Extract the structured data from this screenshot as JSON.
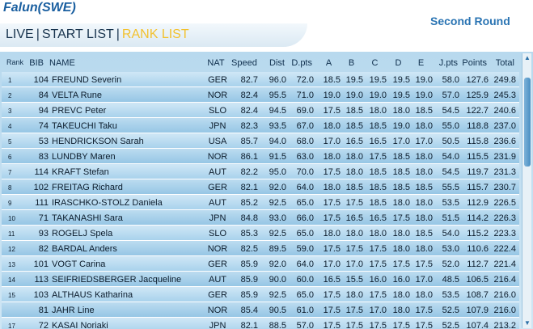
{
  "header": {
    "venue": "Falun(SWE)",
    "round": "Second Round",
    "tabs": [
      {
        "label": "LIVE"
      },
      {
        "label": "START LIST"
      },
      {
        "label": "RANK LIST",
        "active": true
      }
    ],
    "separator": "|"
  },
  "table": {
    "columns": {
      "rank": "Rank",
      "bib": "BIB",
      "name": "NAME",
      "nat": "NAT",
      "speed": "Speed",
      "dist": "Dist",
      "dpts": "D.pts",
      "a": "A",
      "b": "B",
      "c": "C",
      "d": "D",
      "e": "E",
      "jpts": "J.pts",
      "points": "Points",
      "total": "Total"
    },
    "rows": [
      {
        "rank": "1",
        "bib": "104",
        "name": "FREUND Severin",
        "nat": "GER",
        "speed": "82.7",
        "dist": "96.0",
        "dpts": "72.0",
        "a": "18.5",
        "b": "19.5",
        "c": "19.5",
        "d": "19.5",
        "e": "19.0",
        "jpts": "58.0",
        "points": "127.6",
        "total": "249.8"
      },
      {
        "rank": "2",
        "bib": "84",
        "name": "VELTA Rune",
        "nat": "NOR",
        "speed": "82.4",
        "dist": "95.5",
        "dpts": "71.0",
        "a": "19.0",
        "b": "19.0",
        "c": "19.0",
        "d": "19.5",
        "e": "19.0",
        "jpts": "57.0",
        "points": "125.9",
        "total": "245.3"
      },
      {
        "rank": "3",
        "bib": "94",
        "name": "PREVC Peter",
        "nat": "SLO",
        "speed": "82.4",
        "dist": "94.5",
        "dpts": "69.0",
        "a": "17.5",
        "b": "18.5",
        "c": "18.0",
        "d": "18.0",
        "e": "18.5",
        "jpts": "54.5",
        "points": "122.7",
        "total": "240.6"
      },
      {
        "rank": "4",
        "bib": "74",
        "name": "TAKEUCHI Taku",
        "nat": "JPN",
        "speed": "82.3",
        "dist": "93.5",
        "dpts": "67.0",
        "a": "18.0",
        "b": "18.5",
        "c": "18.5",
        "d": "19.0",
        "e": "18.0",
        "jpts": "55.0",
        "points": "118.8",
        "total": "237.0"
      },
      {
        "rank": "5",
        "bib": "53",
        "name": "HENDRICKSON Sarah",
        "nat": "USA",
        "speed": "85.7",
        "dist": "94.0",
        "dpts": "68.0",
        "a": "17.0",
        "b": "16.5",
        "c": "16.5",
        "d": "17.0",
        "e": "17.0",
        "jpts": "50.5",
        "points": "115.8",
        "total": "236.6"
      },
      {
        "rank": "6",
        "bib": "83",
        "name": "LUNDBY Maren",
        "nat": "NOR",
        "speed": "86.1",
        "dist": "91.5",
        "dpts": "63.0",
        "a": "18.0",
        "b": "18.0",
        "c": "17.5",
        "d": "18.5",
        "e": "18.0",
        "jpts": "54.0",
        "points": "115.5",
        "total": "231.9"
      },
      {
        "rank": "7",
        "bib": "114",
        "name": "KRAFT Stefan",
        "nat": "AUT",
        "speed": "82.2",
        "dist": "95.0",
        "dpts": "70.0",
        "a": "17.5",
        "b": "18.0",
        "c": "18.5",
        "d": "18.5",
        "e": "18.0",
        "jpts": "54.5",
        "points": "119.7",
        "total": "231.3"
      },
      {
        "rank": "8",
        "bib": "102",
        "name": "FREITAG Richard",
        "nat": "GER",
        "speed": "82.1",
        "dist": "92.0",
        "dpts": "64.0",
        "a": "18.0",
        "b": "18.5",
        "c": "18.5",
        "d": "18.5",
        "e": "18.5",
        "jpts": "55.5",
        "points": "115.7",
        "total": "230.7"
      },
      {
        "rank": "9",
        "bib": "111",
        "name": "IRASCHKO-STOLZ Daniela",
        "nat": "AUT",
        "speed": "85.2",
        "dist": "92.5",
        "dpts": "65.0",
        "a": "17.5",
        "b": "17.5",
        "c": "18.5",
        "d": "18.0",
        "e": "18.0",
        "jpts": "53.5",
        "points": "112.9",
        "total": "226.5"
      },
      {
        "rank": "10",
        "bib": "71",
        "name": "TAKANASHI Sara",
        "nat": "JPN",
        "speed": "84.8",
        "dist": "93.0",
        "dpts": "66.0",
        "a": "17.5",
        "b": "16.5",
        "c": "16.5",
        "d": "17.5",
        "e": "18.0",
        "jpts": "51.5",
        "points": "114.2",
        "total": "226.3"
      },
      {
        "rank": "11",
        "bib": "93",
        "name": "ROGELJ Spela",
        "nat": "SLO",
        "speed": "85.3",
        "dist": "92.5",
        "dpts": "65.0",
        "a": "18.0",
        "b": "18.0",
        "c": "18.0",
        "d": "18.0",
        "e": "18.5",
        "jpts": "54.0",
        "points": "115.2",
        "total": "223.3"
      },
      {
        "rank": "12",
        "bib": "82",
        "name": "BARDAL Anders",
        "nat": "NOR",
        "speed": "82.5",
        "dist": "89.5",
        "dpts": "59.0",
        "a": "17.5",
        "b": "17.5",
        "c": "17.5",
        "d": "18.0",
        "e": "18.0",
        "jpts": "53.0",
        "points": "110.6",
        "total": "222.4"
      },
      {
        "rank": "13",
        "bib": "101",
        "name": "VOGT Carina",
        "nat": "GER",
        "speed": "85.9",
        "dist": "92.0",
        "dpts": "64.0",
        "a": "17.0",
        "b": "17.0",
        "c": "17.5",
        "d": "17.5",
        "e": "17.5",
        "jpts": "52.0",
        "points": "112.7",
        "total": "221.4"
      },
      {
        "rank": "14",
        "bib": "113",
        "name": "SEIFRIEDSBERGER Jacqueline",
        "nat": "AUT",
        "speed": "85.9",
        "dist": "90.0",
        "dpts": "60.0",
        "a": "16.5",
        "b": "15.5",
        "c": "16.0",
        "d": "16.0",
        "e": "17.0",
        "jpts": "48.5",
        "points": "106.5",
        "total": "216.4"
      },
      {
        "rank": "15",
        "bib": "103",
        "name": "ALTHAUS Katharina",
        "nat": "GER",
        "speed": "85.9",
        "dist": "92.5",
        "dpts": "65.0",
        "a": "17.5",
        "b": "18.0",
        "c": "17.5",
        "d": "18.0",
        "e": "18.0",
        "jpts": "53.5",
        "points": "108.7",
        "total": "216.0"
      },
      {
        "rank": "",
        "bib": "81",
        "name": "JAHR Line",
        "nat": "NOR",
        "speed": "85.4",
        "dist": "90.5",
        "dpts": "61.0",
        "a": "17.5",
        "b": "17.5",
        "c": "17.0",
        "d": "18.0",
        "e": "17.5",
        "jpts": "52.5",
        "points": "107.9",
        "total": "216.0"
      },
      {
        "rank": "17",
        "bib": "72",
        "name": "KASAI Noriaki",
        "nat": "JPN",
        "speed": "82.1",
        "dist": "88.5",
        "dpts": "57.0",
        "a": "17.5",
        "b": "17.5",
        "c": "17.5",
        "d": "17.5",
        "e": "17.5",
        "jpts": "52.5",
        "points": "107.4",
        "total": "213.2"
      }
    ]
  },
  "icons": {
    "scroll_up": "scroll-up-arrow-icon",
    "scroll_down": "scroll-down-arrow-icon"
  }
}
